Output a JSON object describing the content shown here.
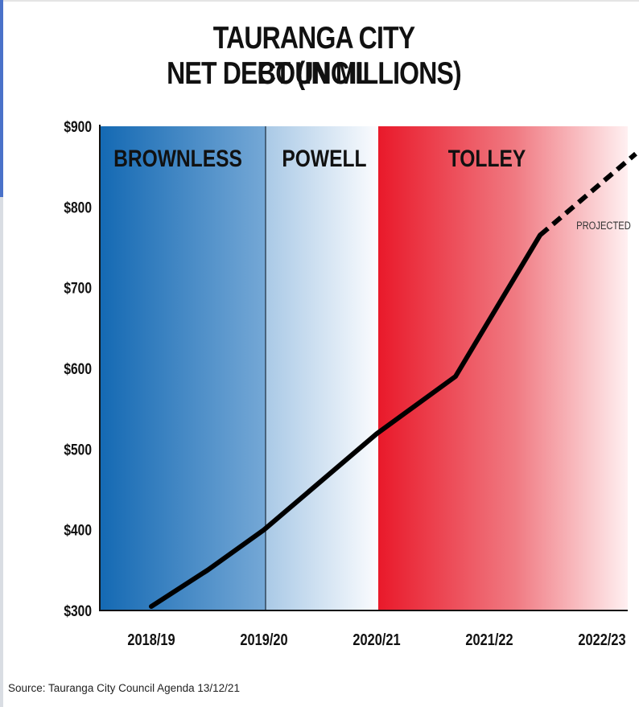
{
  "chart_data": {
    "type": "line",
    "title": [
      "TAURANGA CITY COUNCIL",
      "NET DEBT (IN MILLIONS)"
    ],
    "x_ticks": [
      "2018/19",
      "2019/20",
      "2020/21",
      "2021/22",
      "2022/23"
    ],
    "y_ticks": [
      "$300",
      "$400",
      "$500",
      "$600",
      "$700",
      "$800",
      "$900"
    ],
    "ylim": [
      300,
      900
    ],
    "bands": [
      {
        "label": "BROWNLESS",
        "from": 0,
        "to": 1,
        "color": "#1a6fb8"
      },
      {
        "label": "POWELL",
        "from": 1,
        "to": 2,
        "color": "#7fb0d9"
      },
      {
        "label": "TOLLEY",
        "from": 2,
        "to": 4.5,
        "color": "#e8202d"
      }
    ],
    "series": [
      {
        "style": "solid",
        "points": [
          [
            0,
            305
          ],
          [
            0.5,
            350
          ],
          [
            1,
            400
          ],
          [
            2,
            519
          ],
          [
            2.7,
            590
          ],
          [
            3.45,
            765
          ]
        ]
      },
      {
        "style": "dashed",
        "label": "PROJECTED",
        "points": [
          [
            3.45,
            765
          ],
          [
            4.3,
            866
          ]
        ]
      }
    ],
    "grid": false
  },
  "source": "Source: Tauranga City Council Agenda 13/12/21"
}
